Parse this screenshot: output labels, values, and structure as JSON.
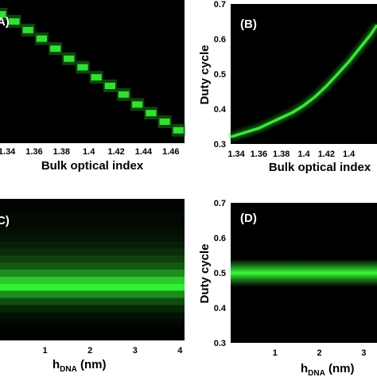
{
  "chart_data": [
    {
      "id": "A",
      "type": "heatmap",
      "panel_label": "A)",
      "xlabel": "Bulk optical index",
      "ylabel": "",
      "x_ticks": [
        "1.34",
        "1.36",
        "1.38",
        "1.4",
        "1.42",
        "1.44",
        "1.46"
      ],
      "y_ticks": [],
      "xlim": [
        1.335,
        1.47
      ],
      "colormap": [
        "#000000",
        "#33ff33"
      ],
      "x": [
        1.335,
        1.345,
        1.355,
        1.365,
        1.375,
        1.385,
        1.395,
        1.405,
        1.415,
        1.425,
        1.435,
        1.445,
        1.455,
        1.465
      ],
      "peak_row_fraction_from_top": [
        0.1,
        0.15,
        0.21,
        0.27,
        0.34,
        0.41,
        0.47,
        0.54,
        0.6,
        0.66,
        0.73,
        0.79,
        0.85,
        0.91
      ]
    },
    {
      "id": "B",
      "type": "heatmap",
      "panel_label": "(B)",
      "xlabel": "Bulk optical index",
      "ylabel": "Duty cycle",
      "x_ticks": [
        "1.34",
        "1.36",
        "1.38",
        "1.4",
        "1.42",
        "1.4"
      ],
      "y_ticks": [
        "0.3",
        "0.4",
        "0.5",
        "0.6",
        "0.7"
      ],
      "xlim": [
        1.335,
        1.465
      ],
      "ylim": [
        0.3,
        0.7
      ],
      "colormap": [
        "#000000",
        "#33ff33"
      ],
      "x": [
        1.335,
        1.35,
        1.36,
        1.37,
        1.38,
        1.39,
        1.4,
        1.41,
        1.42,
        1.43,
        1.44,
        1.45,
        1.46,
        1.465
      ],
      "peak_duty_cycle": [
        0.32,
        0.335,
        0.345,
        0.36,
        0.375,
        0.39,
        0.41,
        0.435,
        0.465,
        0.5,
        0.535,
        0.575,
        0.615,
        0.64
      ]
    },
    {
      "id": "C",
      "type": "heatmap",
      "panel_label": "C)",
      "xlabel": "h",
      "xlabel_sub": "DNA",
      "xlabel_unit": " (nm)",
      "ylabel": "",
      "x_ticks": [
        "1",
        "2",
        "3",
        "4"
      ],
      "y_ticks": [],
      "xlim": [
        0,
        4.1
      ],
      "colormap": [
        "#000000",
        "#33ff33"
      ],
      "rows_from_top": [
        0.01,
        0.02,
        0.03,
        0.04,
        0.06,
        0.08,
        0.12,
        0.18,
        0.25,
        0.35,
        0.55,
        0.8,
        0.95,
        0.55,
        0.3,
        0.15,
        0.07,
        0.03,
        0.01,
        0.0
      ]
    },
    {
      "id": "D",
      "type": "heatmap",
      "panel_label": "(D)",
      "xlabel": "h",
      "xlabel_sub": "DNA",
      "xlabel_unit": " (nm)",
      "ylabel": "Duty cycle",
      "x_ticks": [
        "1",
        "2",
        "3"
      ],
      "y_ticks": [
        "0.3",
        "0.4",
        "0.5",
        "0.6",
        "0.7"
      ],
      "xlim": [
        0,
        3.3
      ],
      "ylim": [
        0.3,
        0.7
      ],
      "colormap": [
        "#000000",
        "#33ff33"
      ],
      "band_center_duty_cycle": 0.5,
      "band_halfwidth_duty_cycle": 0.018
    }
  ]
}
